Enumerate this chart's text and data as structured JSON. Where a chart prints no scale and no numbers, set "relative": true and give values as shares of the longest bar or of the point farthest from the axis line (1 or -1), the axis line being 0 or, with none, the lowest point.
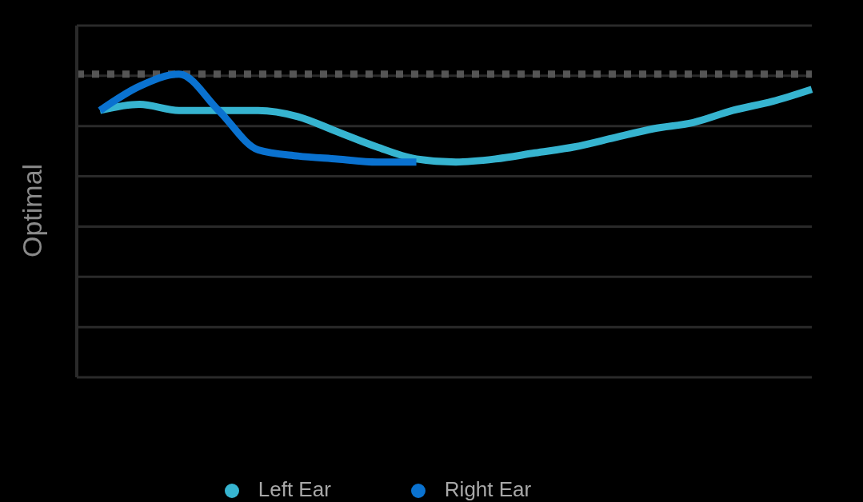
{
  "chart_data": {
    "type": "line",
    "relative": true,
    "ylabel": "Optimal",
    "categories": [
      null,
      null,
      null,
      null,
      null,
      null,
      null,
      null,
      null,
      null,
      null,
      null,
      null,
      null,
      null,
      null,
      null,
      null,
      null
    ],
    "series": [
      {
        "name": "Left Ear",
        "color": "#36b4d0",
        "values": [
          0.88,
          0.9,
          0.88,
          0.88,
          0.88,
          0.86,
          0.81,
          0.76,
          0.72,
          0.71,
          0.72,
          0.74,
          0.76,
          0.79,
          0.82,
          0.84,
          0.88,
          0.91,
          0.95
        ]
      },
      {
        "name": "Right Ear",
        "color": "#0a72d0",
        "values": [
          0.88,
          0.96,
          1.0,
          0.88,
          0.75,
          0.73,
          0.72,
          0.71,
          0.71,
          null,
          null,
          null,
          null,
          null,
          null,
          null,
          null,
          null,
          null
        ]
      }
    ],
    "ref_lines": [
      {
        "axis": "y",
        "value": 1,
        "color": "#555555",
        "line_style": "dotted"
      }
    ],
    "grid": "y",
    "legend": "bottom",
    "marker": "none",
    "line_style": "solid"
  }
}
